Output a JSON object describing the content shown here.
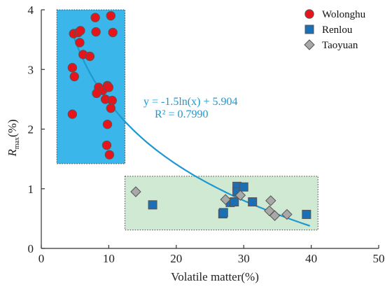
{
  "chart_data": {
    "type": "scatter",
    "xlabel": "Volatile matter(%)",
    "ylabel_main": "R",
    "ylabel_sub": "max",
    "ylabel_unit": "(%)",
    "xlim": [
      0,
      50
    ],
    "ylim": [
      0,
      4
    ],
    "xticks": [
      "0",
      "10",
      "20",
      "30",
      "40",
      "50"
    ],
    "yticks": [
      "0",
      "1",
      "2",
      "3",
      "4"
    ],
    "grid": false,
    "legend_position": "top-right",
    "series": [
      {
        "name": "Wolonghu",
        "marker": "circle",
        "color": "#e8141b",
        "points": [
          [
            4.8,
            3.6
          ],
          [
            5.5,
            3.62
          ],
          [
            5.8,
            3.65
          ],
          [
            5.7,
            3.45
          ],
          [
            6.2,
            3.25
          ],
          [
            7.2,
            3.22
          ],
          [
            8.0,
            3.87
          ],
          [
            10.3,
            3.9
          ],
          [
            10.6,
            3.62
          ],
          [
            8.1,
            3.63
          ],
          [
            4.6,
            3.03
          ],
          [
            4.9,
            2.88
          ],
          [
            8.5,
            2.7
          ],
          [
            9.1,
            2.65
          ],
          [
            9.8,
            2.73
          ],
          [
            10.0,
            2.7
          ],
          [
            8.2,
            2.6
          ],
          [
            9.5,
            2.5
          ],
          [
            10.5,
            2.48
          ],
          [
            10.3,
            2.35
          ],
          [
            4.6,
            2.25
          ],
          [
            9.8,
            2.08
          ],
          [
            9.7,
            1.73
          ],
          [
            10.1,
            1.57
          ]
        ]
      },
      {
        "name": "Renlou",
        "marker": "square",
        "color": "#1a6fb5",
        "points": [
          [
            16.5,
            0.73
          ],
          [
            26.9,
            0.58
          ],
          [
            27.0,
            0.6
          ],
          [
            28.0,
            0.77
          ],
          [
            28.6,
            0.78
          ],
          [
            29.0,
            1.04
          ],
          [
            29.0,
            0.95
          ],
          [
            30.0,
            1.03
          ],
          [
            31.3,
            0.78
          ],
          [
            39.3,
            0.57
          ]
        ]
      },
      {
        "name": "Taoyuan",
        "marker": "diamond",
        "color": "#a8a8a8",
        "points": [
          [
            14.0,
            0.95
          ],
          [
            27.3,
            0.82
          ],
          [
            29.5,
            0.89
          ],
          [
            34.0,
            0.8
          ],
          [
            33.8,
            0.63
          ],
          [
            34.6,
            0.55
          ],
          [
            36.4,
            0.57
          ]
        ]
      }
    ],
    "regions": [
      {
        "x": [
          2.3,
          12.4
        ],
        "y": [
          1.42,
          4.0
        ],
        "color": "#3bb6ea"
      },
      {
        "x": [
          12.4,
          41.0
        ],
        "y": [
          0.31,
          1.21
        ],
        "color": "#cfe9d2"
      }
    ],
    "fit": {
      "equation": "y = -1.5ln(x) + 5.904",
      "r2": "R² = 0.7990",
      "a": -1.5,
      "b": 5.904,
      "x_range": [
        4.7,
        39.8
      ],
      "color": "#1e98d0"
    }
  }
}
